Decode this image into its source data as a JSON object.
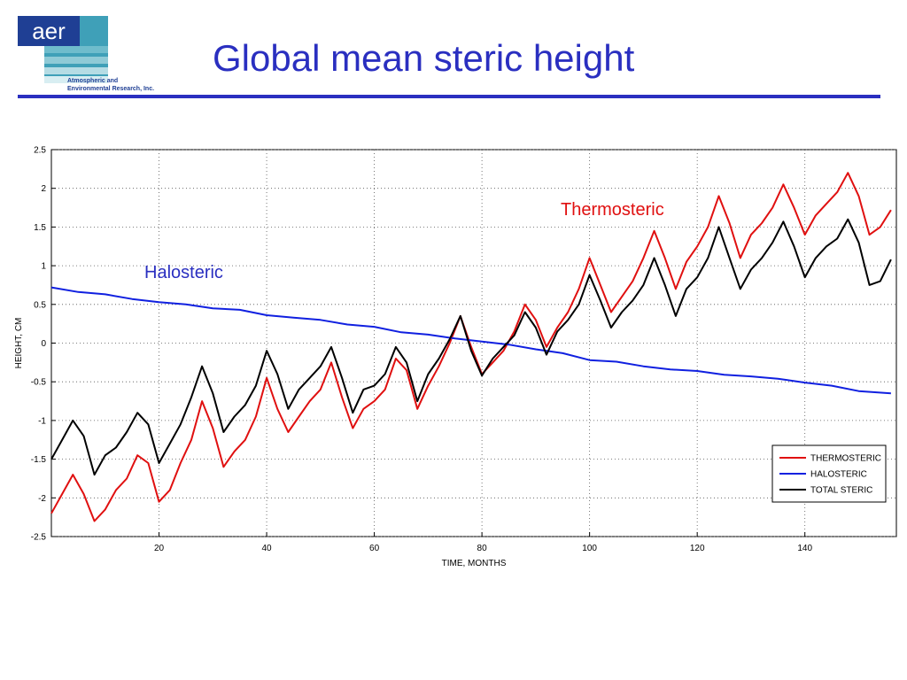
{
  "header": {
    "title": "Global mean steric height",
    "logo_text": "aer",
    "logo_line1": "Atmospheric and",
    "logo_line2": "Environmental Research, Inc."
  },
  "colors": {
    "accent": "#2a2fc0",
    "thermosteric": "#e01010",
    "halosteric": "#1020e0",
    "total": "#000000"
  },
  "chart_data": {
    "type": "line",
    "title": "",
    "xlabel": "TIME, MONTHS",
    "ylabel": "HEIGHT, CM",
    "xlim": [
      0,
      157
    ],
    "ylim": [
      -2.5,
      2.5
    ],
    "xticks": [
      20,
      40,
      60,
      80,
      100,
      120,
      140
    ],
    "yticks": [
      -2.5,
      -2,
      -1.5,
      -1,
      -0.5,
      0,
      0.5,
      1,
      1.5,
      2,
      2.5
    ],
    "grid": true,
    "legend_position": "bottom-right",
    "annotations": [
      {
        "text": "Thermosteric",
        "color": "#e01010"
      },
      {
        "text": "Halosteric",
        "color": "#2a2fc0"
      }
    ],
    "series": [
      {
        "name": "THERMOSTERIC",
        "color": "#e01010",
        "points": [
          [
            0,
            -2.2
          ],
          [
            2,
            -1.95
          ],
          [
            4,
            -1.7
          ],
          [
            6,
            -1.95
          ],
          [
            8,
            -2.3
          ],
          [
            10,
            -2.15
          ],
          [
            12,
            -1.9
          ],
          [
            14,
            -1.75
          ],
          [
            16,
            -1.45
          ],
          [
            18,
            -1.55
          ],
          [
            20,
            -2.05
          ],
          [
            22,
            -1.9
          ],
          [
            24,
            -1.55
          ],
          [
            26,
            -1.25
          ],
          [
            28,
            -0.75
          ],
          [
            30,
            -1.1
          ],
          [
            32,
            -1.6
          ],
          [
            34,
            -1.4
          ],
          [
            36,
            -1.25
          ],
          [
            38,
            -0.95
          ],
          [
            40,
            -0.45
          ],
          [
            42,
            -0.85
          ],
          [
            44,
            -1.15
          ],
          [
            46,
            -0.95
          ],
          [
            48,
            -0.75
          ],
          [
            50,
            -0.6
          ],
          [
            52,
            -0.25
          ],
          [
            54,
            -0.7
          ],
          [
            56,
            -1.1
          ],
          [
            58,
            -0.85
          ],
          [
            60,
            -0.75
          ],
          [
            62,
            -0.6
          ],
          [
            64,
            -0.2
          ],
          [
            66,
            -0.35
          ],
          [
            68,
            -0.85
          ],
          [
            70,
            -0.55
          ],
          [
            72,
            -0.3
          ],
          [
            74,
            0.0
          ],
          [
            76,
            0.35
          ],
          [
            78,
            -0.05
          ],
          [
            80,
            -0.4
          ],
          [
            82,
            -0.25
          ],
          [
            84,
            -0.1
          ],
          [
            86,
            0.15
          ],
          [
            88,
            0.5
          ],
          [
            90,
            0.3
          ],
          [
            92,
            -0.05
          ],
          [
            94,
            0.2
          ],
          [
            96,
            0.4
          ],
          [
            98,
            0.7
          ],
          [
            100,
            1.1
          ],
          [
            102,
            0.75
          ],
          [
            104,
            0.4
          ],
          [
            106,
            0.6
          ],
          [
            108,
            0.8
          ],
          [
            110,
            1.1
          ],
          [
            112,
            1.45
          ],
          [
            114,
            1.1
          ],
          [
            116,
            0.7
          ],
          [
            118,
            1.05
          ],
          [
            120,
            1.25
          ],
          [
            122,
            1.5
          ],
          [
            124,
            1.9
          ],
          [
            126,
            1.55
          ],
          [
            128,
            1.1
          ],
          [
            130,
            1.4
          ],
          [
            132,
            1.55
          ],
          [
            134,
            1.75
          ],
          [
            136,
            2.05
          ],
          [
            138,
            1.75
          ],
          [
            140,
            1.4
          ],
          [
            142,
            1.65
          ],
          [
            144,
            1.8
          ],
          [
            146,
            1.95
          ],
          [
            148,
            2.2
          ],
          [
            150,
            1.9
          ],
          [
            152,
            1.4
          ],
          [
            154,
            1.5
          ],
          [
            156,
            1.72
          ]
        ]
      },
      {
        "name": "HALOSTERIC",
        "color": "#1020e0",
        "points": [
          [
            0,
            0.72
          ],
          [
            5,
            0.66
          ],
          [
            10,
            0.63
          ],
          [
            15,
            0.57
          ],
          [
            20,
            0.53
          ],
          [
            25,
            0.5
          ],
          [
            30,
            0.45
          ],
          [
            35,
            0.43
          ],
          [
            40,
            0.36
          ],
          [
            45,
            0.33
          ],
          [
            50,
            0.3
          ],
          [
            55,
            0.24
          ],
          [
            60,
            0.21
          ],
          [
            65,
            0.14
          ],
          [
            70,
            0.11
          ],
          [
            75,
            0.06
          ],
          [
            80,
            0.02
          ],
          [
            85,
            -0.02
          ],
          [
            90,
            -0.08
          ],
          [
            95,
            -0.13
          ],
          [
            100,
            -0.22
          ],
          [
            105,
            -0.24
          ],
          [
            110,
            -0.3
          ],
          [
            115,
            -0.34
          ],
          [
            120,
            -0.36
          ],
          [
            125,
            -0.41
          ],
          [
            130,
            -0.43
          ],
          [
            135,
            -0.46
          ],
          [
            140,
            -0.51
          ],
          [
            145,
            -0.55
          ],
          [
            150,
            -0.62
          ],
          [
            156,
            -0.65
          ]
        ]
      },
      {
        "name": "TOTAL STERIC",
        "color": "#000000",
        "points": [
          [
            0,
            -1.5
          ],
          [
            2,
            -1.25
          ],
          [
            4,
            -1.0
          ],
          [
            6,
            -1.2
          ],
          [
            8,
            -1.7
          ],
          [
            10,
            -1.45
          ],
          [
            12,
            -1.35
          ],
          [
            14,
            -1.15
          ],
          [
            16,
            -0.9
          ],
          [
            18,
            -1.05
          ],
          [
            20,
            -1.55
          ],
          [
            22,
            -1.3
          ],
          [
            24,
            -1.05
          ],
          [
            26,
            -0.7
          ],
          [
            28,
            -0.3
          ],
          [
            30,
            -0.65
          ],
          [
            32,
            -1.15
          ],
          [
            34,
            -0.95
          ],
          [
            36,
            -0.8
          ],
          [
            38,
            -0.55
          ],
          [
            40,
            -0.1
          ],
          [
            42,
            -0.4
          ],
          [
            44,
            -0.85
          ],
          [
            46,
            -0.6
          ],
          [
            48,
            -0.45
          ],
          [
            50,
            -0.3
          ],
          [
            52,
            -0.05
          ],
          [
            54,
            -0.45
          ],
          [
            56,
            -0.9
          ],
          [
            58,
            -0.6
          ],
          [
            60,
            -0.55
          ],
          [
            62,
            -0.4
          ],
          [
            64,
            -0.05
          ],
          [
            66,
            -0.25
          ],
          [
            68,
            -0.75
          ],
          [
            70,
            -0.4
          ],
          [
            72,
            -0.2
          ],
          [
            74,
            0.05
          ],
          [
            76,
            0.35
          ],
          [
            78,
            -0.1
          ],
          [
            80,
            -0.42
          ],
          [
            82,
            -0.2
          ],
          [
            84,
            -0.05
          ],
          [
            86,
            0.1
          ],
          [
            88,
            0.4
          ],
          [
            90,
            0.2
          ],
          [
            92,
            -0.15
          ],
          [
            94,
            0.15
          ],
          [
            96,
            0.3
          ],
          [
            98,
            0.5
          ],
          [
            100,
            0.88
          ],
          [
            102,
            0.55
          ],
          [
            104,
            0.2
          ],
          [
            106,
            0.4
          ],
          [
            108,
            0.55
          ],
          [
            110,
            0.75
          ],
          [
            112,
            1.1
          ],
          [
            114,
            0.75
          ],
          [
            116,
            0.35
          ],
          [
            118,
            0.7
          ],
          [
            120,
            0.85
          ],
          [
            122,
            1.1
          ],
          [
            124,
            1.5
          ],
          [
            126,
            1.1
          ],
          [
            128,
            0.7
          ],
          [
            130,
            0.95
          ],
          [
            132,
            1.1
          ],
          [
            134,
            1.3
          ],
          [
            136,
            1.57
          ],
          [
            138,
            1.25
          ],
          [
            140,
            0.85
          ],
          [
            142,
            1.1
          ],
          [
            144,
            1.25
          ],
          [
            146,
            1.35
          ],
          [
            148,
            1.6
          ],
          [
            150,
            1.3
          ],
          [
            152,
            0.75
          ],
          [
            154,
            0.8
          ],
          [
            156,
            1.08
          ]
        ]
      }
    ]
  }
}
